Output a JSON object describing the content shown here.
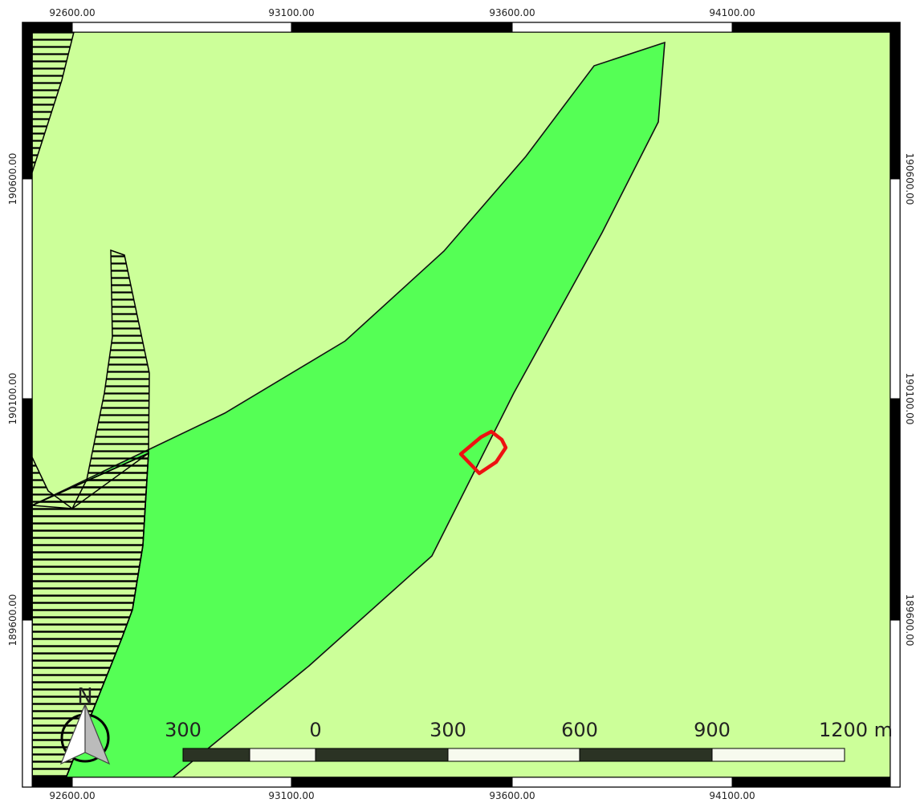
{
  "map": {
    "colors": {
      "background": "#ccff99",
      "zone_green": "#55ff55",
      "hatch_fill_light": "#ccff99",
      "hatch_lines": "#000000",
      "site_outline": "#ee1111",
      "frame_dark": "#000000",
      "frame_light": "#ffffff"
    },
    "grid": {
      "top_labels": [
        "92600.00",
        "93100.00",
        "93600.00",
        "94100.00"
      ],
      "bottom_labels": [
        "92600.00",
        "93100.00",
        "93600.00",
        "94100.00"
      ],
      "left_labels": [
        "190600.00",
        "190100.00",
        "189600.00"
      ],
      "right_labels": [
        "190600.00",
        "190100.00",
        "189600.00"
      ]
    },
    "scale_bar": {
      "labels": [
        "300",
        "0",
        "300",
        "600",
        "900",
        "1200 m"
      ]
    },
    "north_arrow": {
      "letter": "N",
      "icon": "north-arrow-icon"
    }
  }
}
